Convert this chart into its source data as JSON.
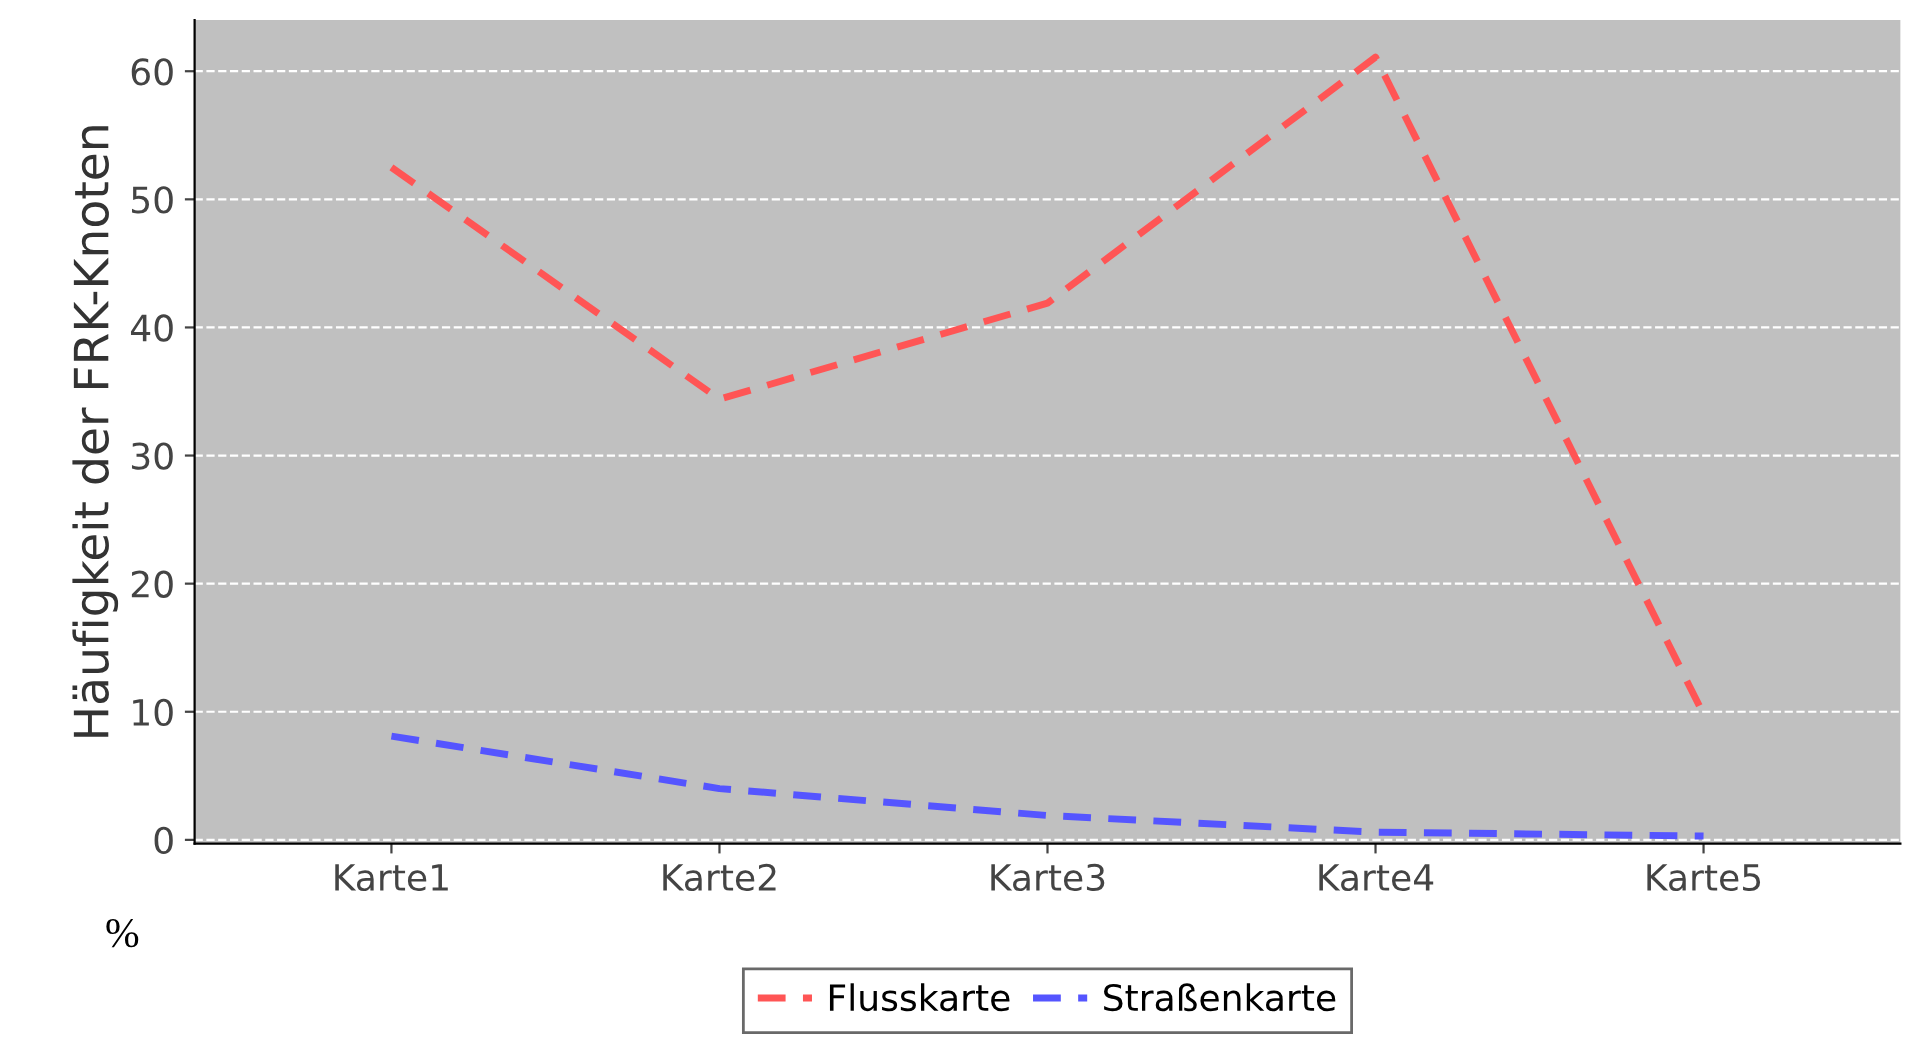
{
  "chart_data": {
    "type": "line",
    "ylabel": "Häufigkeit der FRK-Knoten",
    "categories": [
      "Karte1",
      "Karte2",
      "Karte3",
      "Karte4",
      "Karte5"
    ],
    "series": [
      {
        "name": "Flusskarte",
        "color": "#ff5555",
        "values": [
          52.5,
          34.4,
          41.9,
          61.1,
          9.8
        ]
      },
      {
        "name": "Straßenkarte",
        "color": "#5555ff",
        "values": [
          8.1,
          4.0,
          1.9,
          0.6,
          0.3
        ]
      }
    ],
    "ylim": [
      -0.3,
      64
    ],
    "yticks": [
      0,
      10,
      20,
      30,
      40,
      50,
      60
    ],
    "grid": "y",
    "legend": "bottom",
    "line_style": "dashed",
    "marker": "none",
    "annotations": [
      "%"
    ]
  }
}
